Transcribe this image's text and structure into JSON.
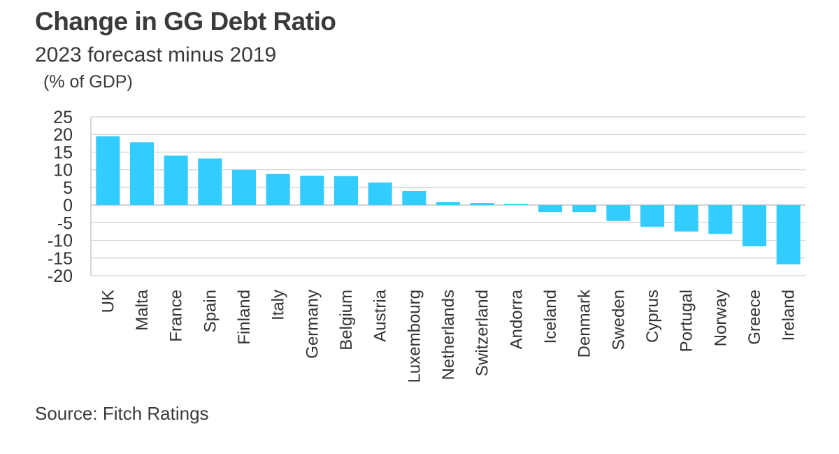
{
  "chart_data": {
    "type": "bar",
    "title": "Change in GG Debt Ratio",
    "subtitle": "2023 forecast minus 2019",
    "ylabel": "(% of GDP)",
    "source": "Source: Fitch Ratings",
    "categories": [
      "UK",
      "Malta",
      "France",
      "Spain",
      "Finland",
      "Italy",
      "Germany",
      "Belgium",
      "Austria",
      "Luxembourg",
      "Netherlands",
      "Switzerland",
      "Andorra",
      "Iceland",
      "Denmark",
      "Sweden",
      "Cyprus",
      "Portugal",
      "Norway",
      "Greece",
      "Ireland"
    ],
    "values": [
      19.5,
      17.8,
      14.0,
      13.2,
      10.0,
      8.8,
      8.3,
      8.2,
      6.4,
      4.0,
      0.8,
      0.6,
      0.3,
      -2.0,
      -2.0,
      -4.5,
      -6.2,
      -7.5,
      -8.2,
      -11.7,
      -16.8
    ],
    "yticks": [
      "25",
      "20",
      "15",
      "10",
      "5",
      "0",
      "-5",
      "-10",
      "-15",
      "-20"
    ],
    "ylim": [
      -20,
      25
    ],
    "grid": true,
    "bar_color": "#33ccff"
  }
}
